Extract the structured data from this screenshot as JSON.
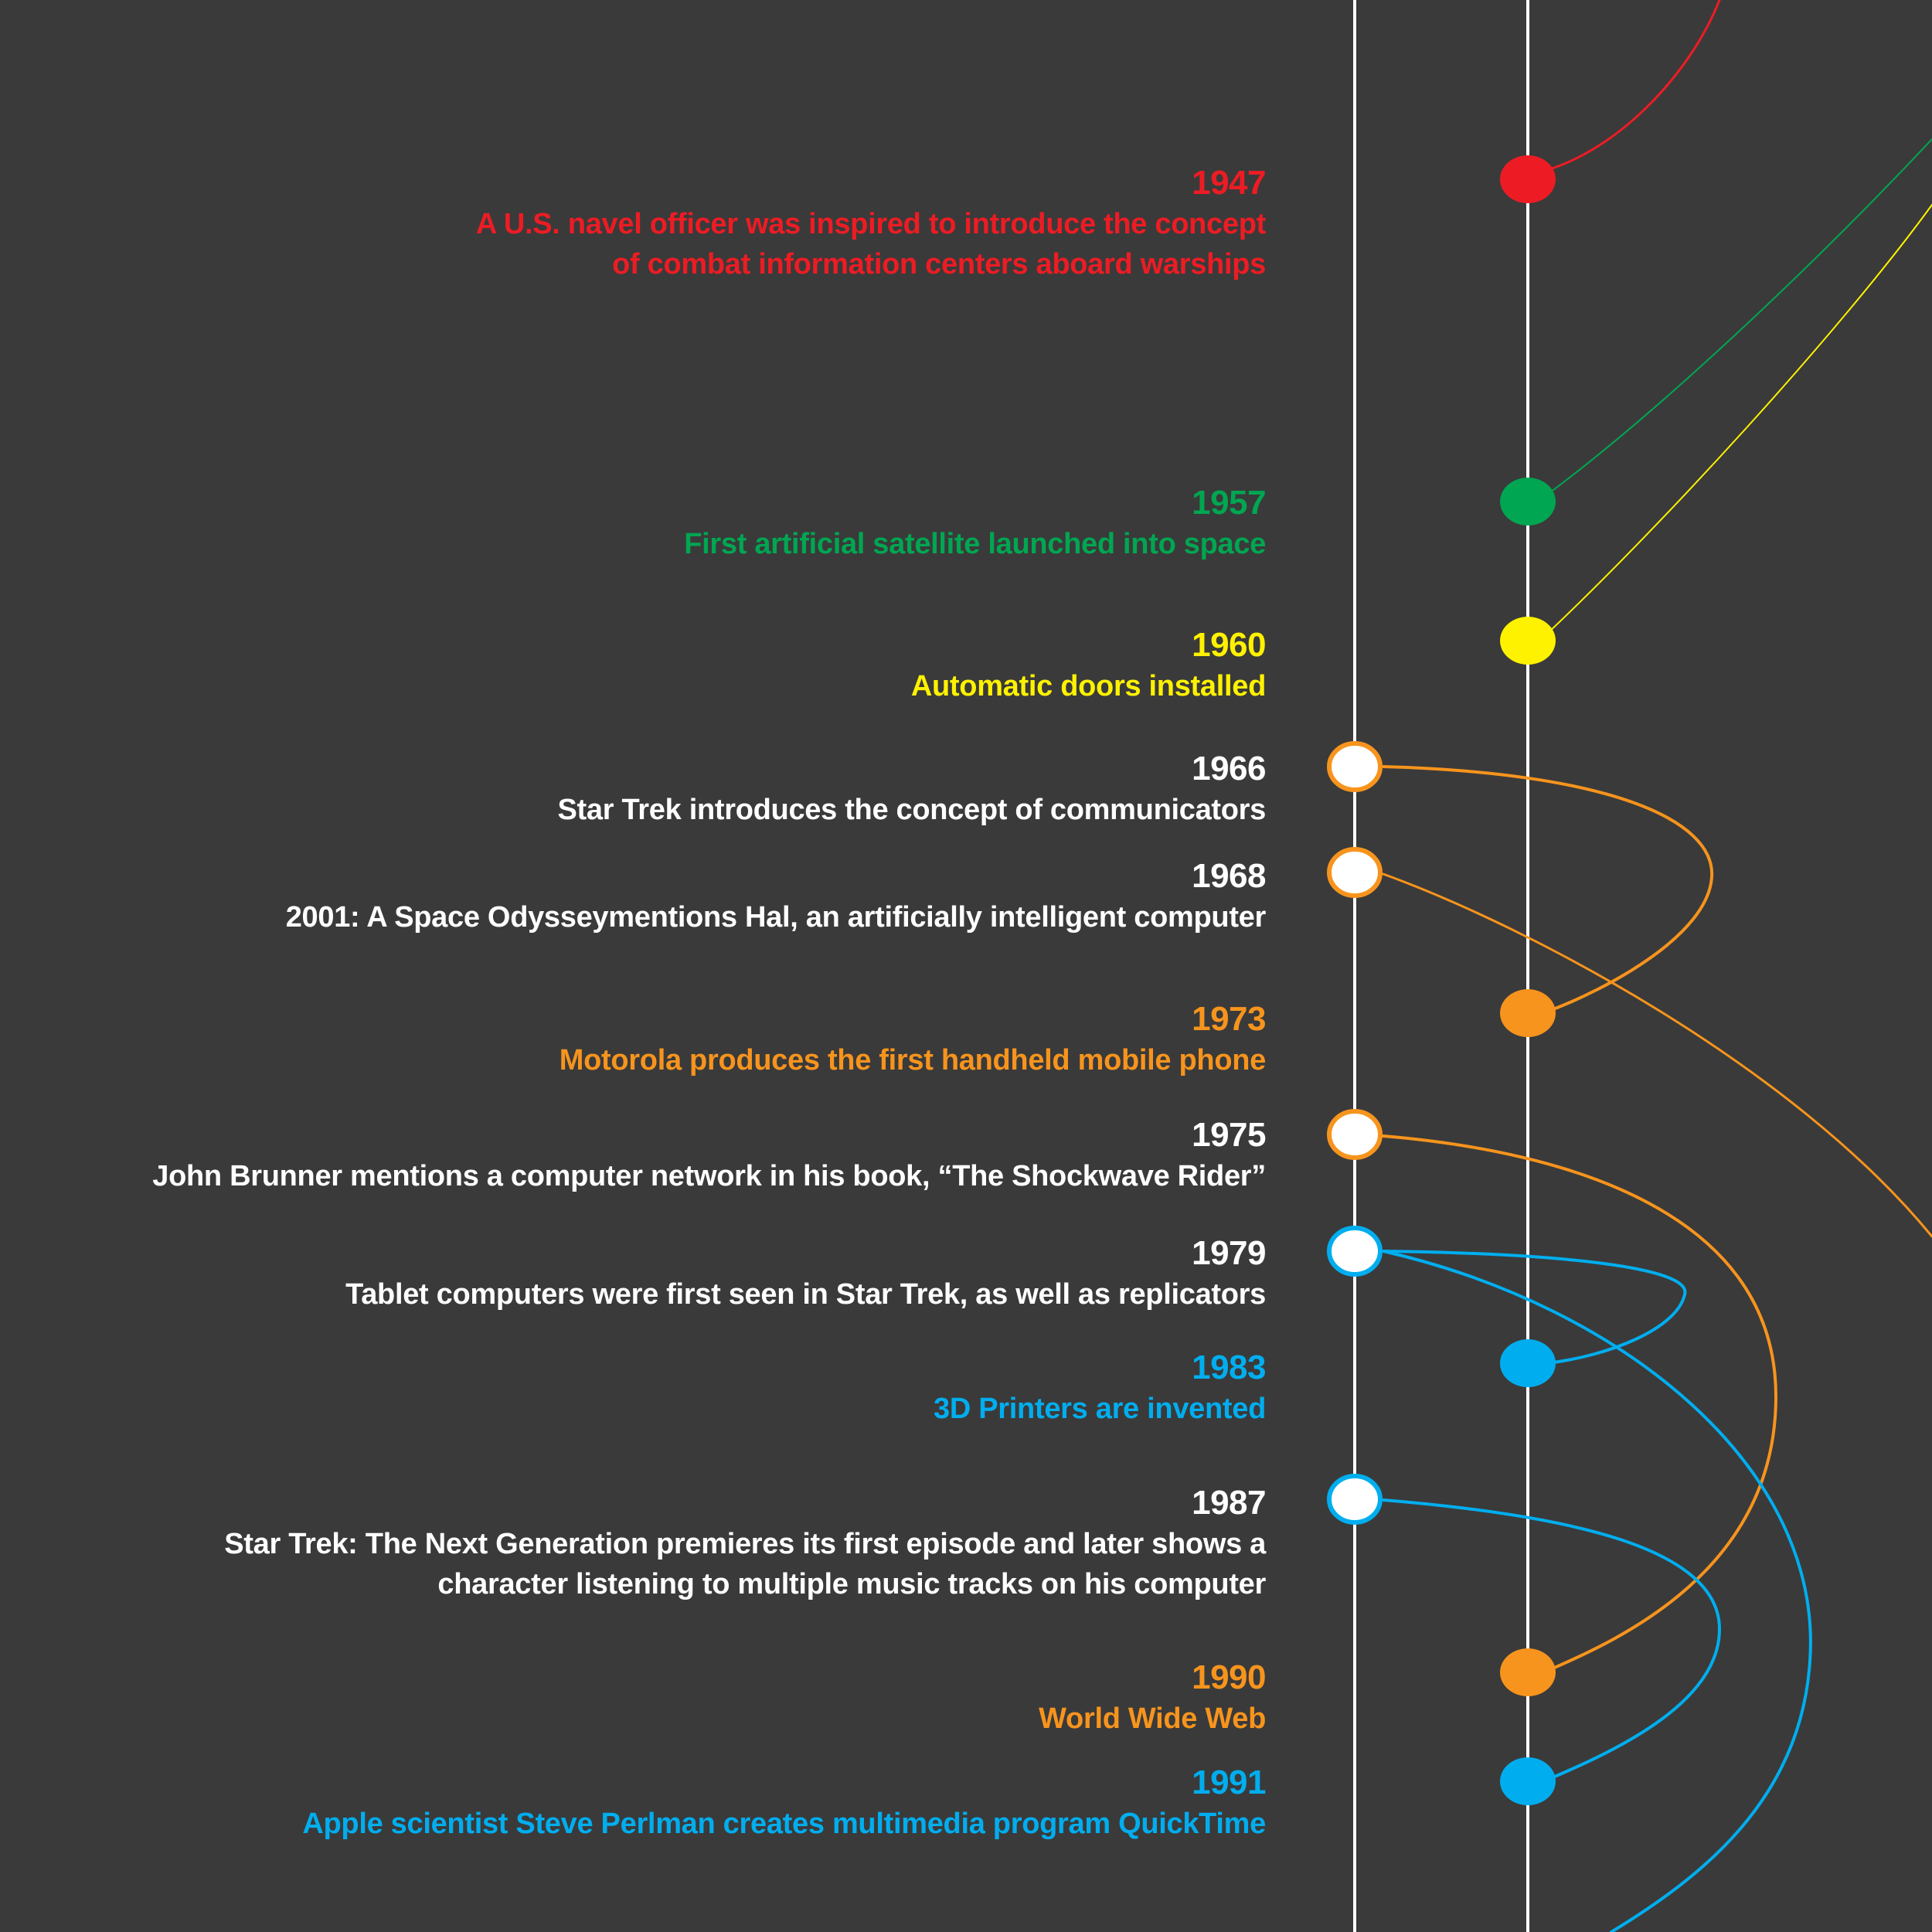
{
  "colors": {
    "background": "#3a3a3a",
    "track": "#ffffff",
    "red": "#ed1c24",
    "green": "#00a651",
    "yellow": "#fff200",
    "orange": "#f7941d",
    "blue": "#00aeef",
    "white": "#ffffff"
  },
  "events": [
    {
      "year": "1947",
      "text": "A U.S. navel officer was inspired to introduce the concept\nof combat information centers aboard warships",
      "color": "red",
      "kind": "invention"
    },
    {
      "year": "1957",
      "text": "First artificial satellite launched into space",
      "color": "green",
      "kind": "invention"
    },
    {
      "year": "1960",
      "text": "Automatic doors installed",
      "color": "yellow",
      "kind": "invention"
    },
    {
      "year": "1966",
      "text": "Star Trek introduces the concept of communicators",
      "color": "white",
      "kind": "fiction"
    },
    {
      "year": "1968",
      "text": "2001: A Space Odysseymentions Hal, an artificially intelligent computer",
      "color": "white",
      "kind": "fiction"
    },
    {
      "year": "1973",
      "text": "Motorola produces the first handheld mobile phone",
      "color": "orange",
      "kind": "invention"
    },
    {
      "year": "1975",
      "text": "John Brunner mentions a computer network in his book, “The Shockwave Rider”",
      "color": "white",
      "kind": "fiction"
    },
    {
      "year": "1979",
      "text": "Tablet computers were first seen in Star Trek, as well as replicators",
      "color": "white",
      "kind": "fiction"
    },
    {
      "year": "1983",
      "text": "3D Printers are invented",
      "color": "blue",
      "kind": "invention"
    },
    {
      "year": "1987",
      "text": "Star Trek: The Next Generation premieres its first episode and later shows a\ncharacter listening to multiple music tracks on his computer",
      "color": "white",
      "kind": "fiction"
    },
    {
      "year": "1990",
      "text": "World Wide Web",
      "color": "orange",
      "kind": "invention"
    },
    {
      "year": "1991",
      "text": "Apple scientist Steve Perlman creates multimedia program QuickTime",
      "color": "blue",
      "kind": "invention"
    }
  ],
  "connections": [
    {
      "from": "1966",
      "to": "1973",
      "color": "orange"
    },
    {
      "from": "1968",
      "to": "offscreen",
      "color": "orange"
    },
    {
      "from": "1975",
      "to": "1990",
      "color": "orange"
    },
    {
      "from": "1979",
      "to": "1983",
      "color": "blue"
    },
    {
      "from": "1979",
      "to": "offscreen",
      "color": "blue"
    },
    {
      "from": "1987",
      "to": "1991",
      "color": "blue"
    },
    {
      "from": "1947",
      "to": "offscreen",
      "color": "red"
    },
    {
      "from": "1957",
      "to": "offscreen",
      "color": "green"
    },
    {
      "from": "1960",
      "to": "offscreen",
      "color": "yellow"
    }
  ]
}
